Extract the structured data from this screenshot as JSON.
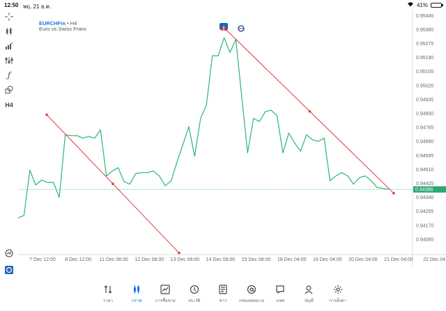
{
  "status_bar": {
    "time": "12:50",
    "date": "พฤ. 21 ธ.ค.",
    "battery_text": "41%",
    "battery_level": 0.41
  },
  "chart_header": {
    "symbol": "EURCHFm",
    "separator": "•",
    "timeframe": "H4",
    "description": "Euro vs Swiss Franc"
  },
  "toolbar": {
    "items": [
      {
        "name": "crosshair-icon"
      },
      {
        "name": "chart-type-icon"
      },
      {
        "name": "indicators-icon"
      },
      {
        "name": "objects-icon"
      },
      {
        "name": "function-icon"
      },
      {
        "name": "shapes-icon"
      },
      {
        "name": "timeframe-button",
        "label": "H4"
      }
    ],
    "bottom": [
      {
        "name": "zoom-icon"
      },
      {
        "name": "settings-logo-icon"
      }
    ]
  },
  "chart_data": {
    "type": "line",
    "series": [
      {
        "values": [
          0.94215,
          0.9423,
          0.94505,
          0.94415,
          0.94445,
          0.9443,
          0.9443,
          0.9434,
          0.9472,
          0.94715,
          0.94715,
          0.947,
          0.9471,
          0.947,
          0.9475,
          0.9447,
          0.945,
          0.9452,
          0.94435,
          0.9442,
          0.94485,
          0.9449,
          0.9449,
          0.945,
          0.9447,
          0.9441,
          0.9444,
          0.94555,
          0.9466,
          0.9477,
          0.9459,
          0.9482,
          0.949,
          0.952,
          0.952,
          0.9531,
          0.9522,
          0.953,
          0.9495,
          0.9461,
          0.9482,
          0.948,
          0.9486,
          0.9487,
          0.94835,
          0.9461,
          0.9473,
          0.9467,
          0.9462,
          0.9472,
          0.9469,
          0.9468,
          0.947,
          0.9444,
          0.9447,
          0.9449,
          0.9447,
          0.9442,
          0.9446,
          0.9447,
          0.9444,
          0.944,
          0.94395,
          0.94388
        ]
      }
    ],
    "trendlines": [
      {
        "from": {
          "x": "7 Dec 12:00",
          "y": 0.94842
        },
        "to": {
          "x": "13 Dec 00:00",
          "y": 0.94002
        }
      },
      {
        "from": {
          "x": "14 Dec 08:00",
          "y": 0.9536
        },
        "to": {
          "x": "21 Dec 00:00",
          "y": 0.94365
        }
      }
    ],
    "current_price": "0.94388",
    "y_ticks": [
      "0.95445",
      "0.95360",
      "0.95275",
      "0.95190",
      "0.95105",
      "0.95020",
      "0.94935",
      "0.94850",
      "0.94765",
      "0.94680",
      "0.94595",
      "0.94510",
      "0.94425",
      "0.94340",
      "0.94255",
      "0.94170",
      "0.94085"
    ],
    "x_ticks": [
      "7 Dec 12:00",
      "8 Dec 12:00",
      "11 Dec 08:00",
      "12 Dec 08:00",
      "13 Dec 08:00",
      "14 Dec 08:00",
      "15 Dec 08:00",
      "18 Dec 04:00",
      "19 Dec 04:00",
      "20 Dec 04:00",
      "21 Dec 04:00",
      "22 Dec 04"
    ],
    "ylim": [
      0.94,
      0.9548
    ],
    "grid": false,
    "colors": {
      "line": "#3ab88a",
      "trend": "#e53935",
      "price_line": "#3ab88a",
      "price_label_bg": "#2aa574"
    }
  },
  "bottom_nav": {
    "items": [
      {
        "name": "nav-quotes",
        "icon": "quotes-icon",
        "label": "ราคา"
      },
      {
        "name": "nav-chart",
        "icon": "chart-icon",
        "label": "กราฟ",
        "active": true
      },
      {
        "name": "nav-trade",
        "icon": "trade-icon",
        "label": "การซื้อขาย"
      },
      {
        "name": "nav-history",
        "icon": "history-icon",
        "label": "ประวัติ"
      },
      {
        "name": "nav-news",
        "icon": "news-icon",
        "label": "ข่าว"
      },
      {
        "name": "nav-mailbox",
        "icon": "mail-icon",
        "label": "กล่องจดหมาย"
      },
      {
        "name": "nav-chat",
        "icon": "chat-icon",
        "label": "แชท"
      },
      {
        "name": "nav-accounts",
        "icon": "accounts-icon",
        "label": "บัญชี"
      },
      {
        "name": "nav-settings",
        "icon": "settings-icon",
        "label": "การตั้งค่า"
      }
    ]
  }
}
